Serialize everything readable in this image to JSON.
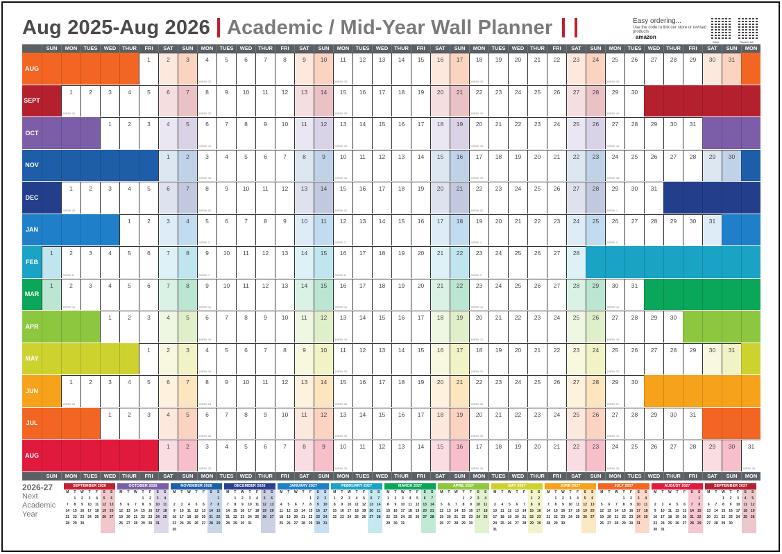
{
  "title": {
    "period": "Aug 2025-Aug 2026",
    "name": "Academic / Mid-Year Wall Planner"
  },
  "ordering": {
    "heading": "Easy ordering...",
    "sub": "Use the code to link our store or revised products",
    "brand": "amazon",
    "qr_captions": [
      "Store",
      "Planner A3"
    ]
  },
  "colors": {
    "header_bg": "#5b6065",
    "title_bar": "#c0202e"
  },
  "day_headers": [
    "SUN",
    "MON",
    "TUES",
    "WED",
    "THUR",
    "FRI",
    "SAT",
    "SUN",
    "MON",
    "TUES",
    "WED",
    "THUR",
    "FRI",
    "SAT",
    "SUN",
    "MON",
    "TUES",
    "WED",
    "THUR",
    "FRI",
    "SAT",
    "SUN",
    "MON",
    "TUES",
    "WED",
    "THUR",
    "FRI",
    "SAT",
    "SUN",
    "MON",
    "TUES",
    "WED",
    "THUR",
    "FRI",
    "SAT",
    "SUN",
    "MON"
  ],
  "week_prefix": "WEEK",
  "months": [
    {
      "label": "AUG",
      "year": 2025,
      "month": 8,
      "color": "#f26522"
    },
    {
      "label": "SEPT",
      "year": 2025,
      "month": 9,
      "color": "#b5202e"
    },
    {
      "label": "OCT",
      "year": 2025,
      "month": 10,
      "color": "#7b5ea7"
    },
    {
      "label": "NOV",
      "year": 2025,
      "month": 11,
      "color": "#1e5ea8"
    },
    {
      "label": "DEC",
      "year": 2025,
      "month": 12,
      "color": "#233e8b"
    },
    {
      "label": "JAN",
      "year": 2026,
      "month": 1,
      "color": "#1f7fc9"
    },
    {
      "label": "FEB",
      "year": 2026,
      "month": 2,
      "color": "#1aa3c4"
    },
    {
      "label": "MAR",
      "year": 2026,
      "month": 3,
      "color": "#0aa65a"
    },
    {
      "label": "APR",
      "year": 2026,
      "month": 4,
      "color": "#8dc63f"
    },
    {
      "label": "MAY",
      "year": 2026,
      "month": 5,
      "color": "#cdd22f"
    },
    {
      "label": "JUN",
      "year": 2026,
      "month": 6,
      "color": "#f7a21b"
    },
    {
      "label": "JUL",
      "year": 2026,
      "month": 7,
      "color": "#f26522"
    },
    {
      "label": "AUG",
      "year": 2026,
      "month": 8,
      "color": "#e01a3c"
    }
  ],
  "next_year": {
    "years": "2026-27",
    "line1": "Next",
    "line2": "Academic",
    "line3": "Year"
  },
  "mini_weekdays": [
    "M",
    "T",
    "W",
    "T",
    "F",
    "S",
    "S"
  ],
  "mini_calendars": [
    {
      "label": "SEPTEMBER 2026",
      "year": 2026,
      "month": 9,
      "color": "#c4202f"
    },
    {
      "label": "OCTOBER 2026",
      "year": 2026,
      "month": 10,
      "color": "#7b5ea7"
    },
    {
      "label": "NOVEMBER 2026",
      "year": 2026,
      "month": 11,
      "color": "#1e5ea8"
    },
    {
      "label": "DECEMBER 2026",
      "year": 2026,
      "month": 12,
      "color": "#2a3f8f"
    },
    {
      "label": "JANUARY 2027",
      "year": 2027,
      "month": 1,
      "color": "#1f7fc9"
    },
    {
      "label": "FEBRUARY 2027",
      "year": 2027,
      "month": 2,
      "color": "#1aa3c4"
    },
    {
      "label": "MARCH 2027",
      "year": 2027,
      "month": 3,
      "color": "#0aa65a"
    },
    {
      "label": "APRIL 2027",
      "year": 2027,
      "month": 4,
      "color": "#8dc63f"
    },
    {
      "label": "MAY 2027",
      "year": 2027,
      "month": 5,
      "color": "#cdd22f"
    },
    {
      "label": "JUNE 2027",
      "year": 2027,
      "month": 6,
      "color": "#f7a21b"
    },
    {
      "label": "JULY 2027",
      "year": 2027,
      "month": 7,
      "color": "#f26522"
    },
    {
      "label": "AUGUST 2027",
      "year": 2027,
      "month": 8,
      "color": "#e01a3c"
    },
    {
      "label": "SEPTEMBER 2027",
      "year": 2027,
      "month": 9,
      "color": "#b5202e"
    }
  ]
}
